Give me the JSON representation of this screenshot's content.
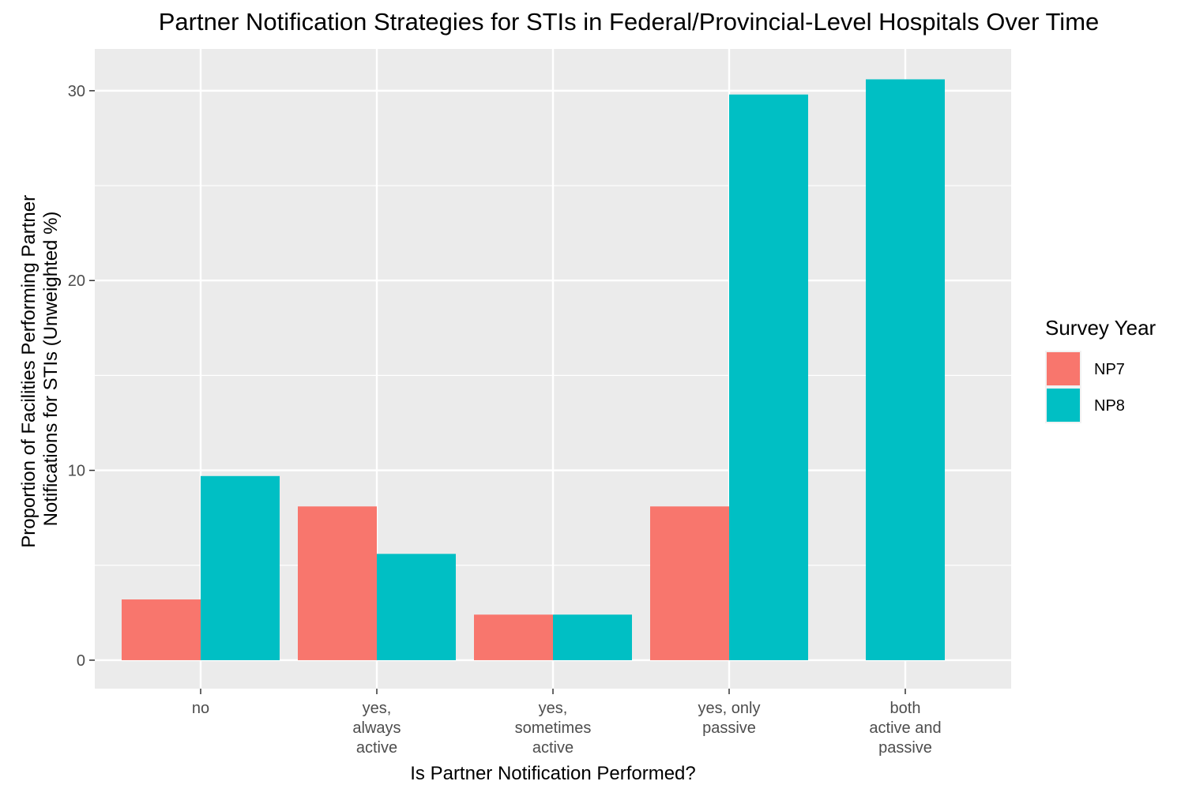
{
  "chart_data": {
    "type": "bar",
    "title": "Partner Notification Strategies for STIs in Federal/Provincial-Level Hospitals Over Time",
    "xlabel": "Is Partner Notification Performed?",
    "ylabel": [
      "Proportion of Facilities Performing Partner",
      "Notifications for STIs (Unweighted %)"
    ],
    "categories": [
      [
        "no"
      ],
      [
        "yes,",
        "always",
        "active"
      ],
      [
        "yes,",
        "sometimes",
        "active"
      ],
      [
        "yes, only",
        "passive"
      ],
      [
        "both",
        "active and",
        "passive"
      ]
    ],
    "series": [
      {
        "name": "NP7",
        "color": "#F8766D",
        "values": [
          3.2,
          8.1,
          2.4,
          8.1,
          null
        ]
      },
      {
        "name": "NP8",
        "color": "#00BFC4",
        "values": [
          9.7,
          5.6,
          2.4,
          29.8,
          30.6
        ]
      }
    ],
    "ylim": [
      -1.5,
      32.2
    ],
    "yticks": [
      0,
      10,
      20,
      30
    ],
    "grid": true,
    "panel_background": "#EBEBEB",
    "legend": {
      "title": "Survey Year",
      "placement": "right"
    }
  }
}
